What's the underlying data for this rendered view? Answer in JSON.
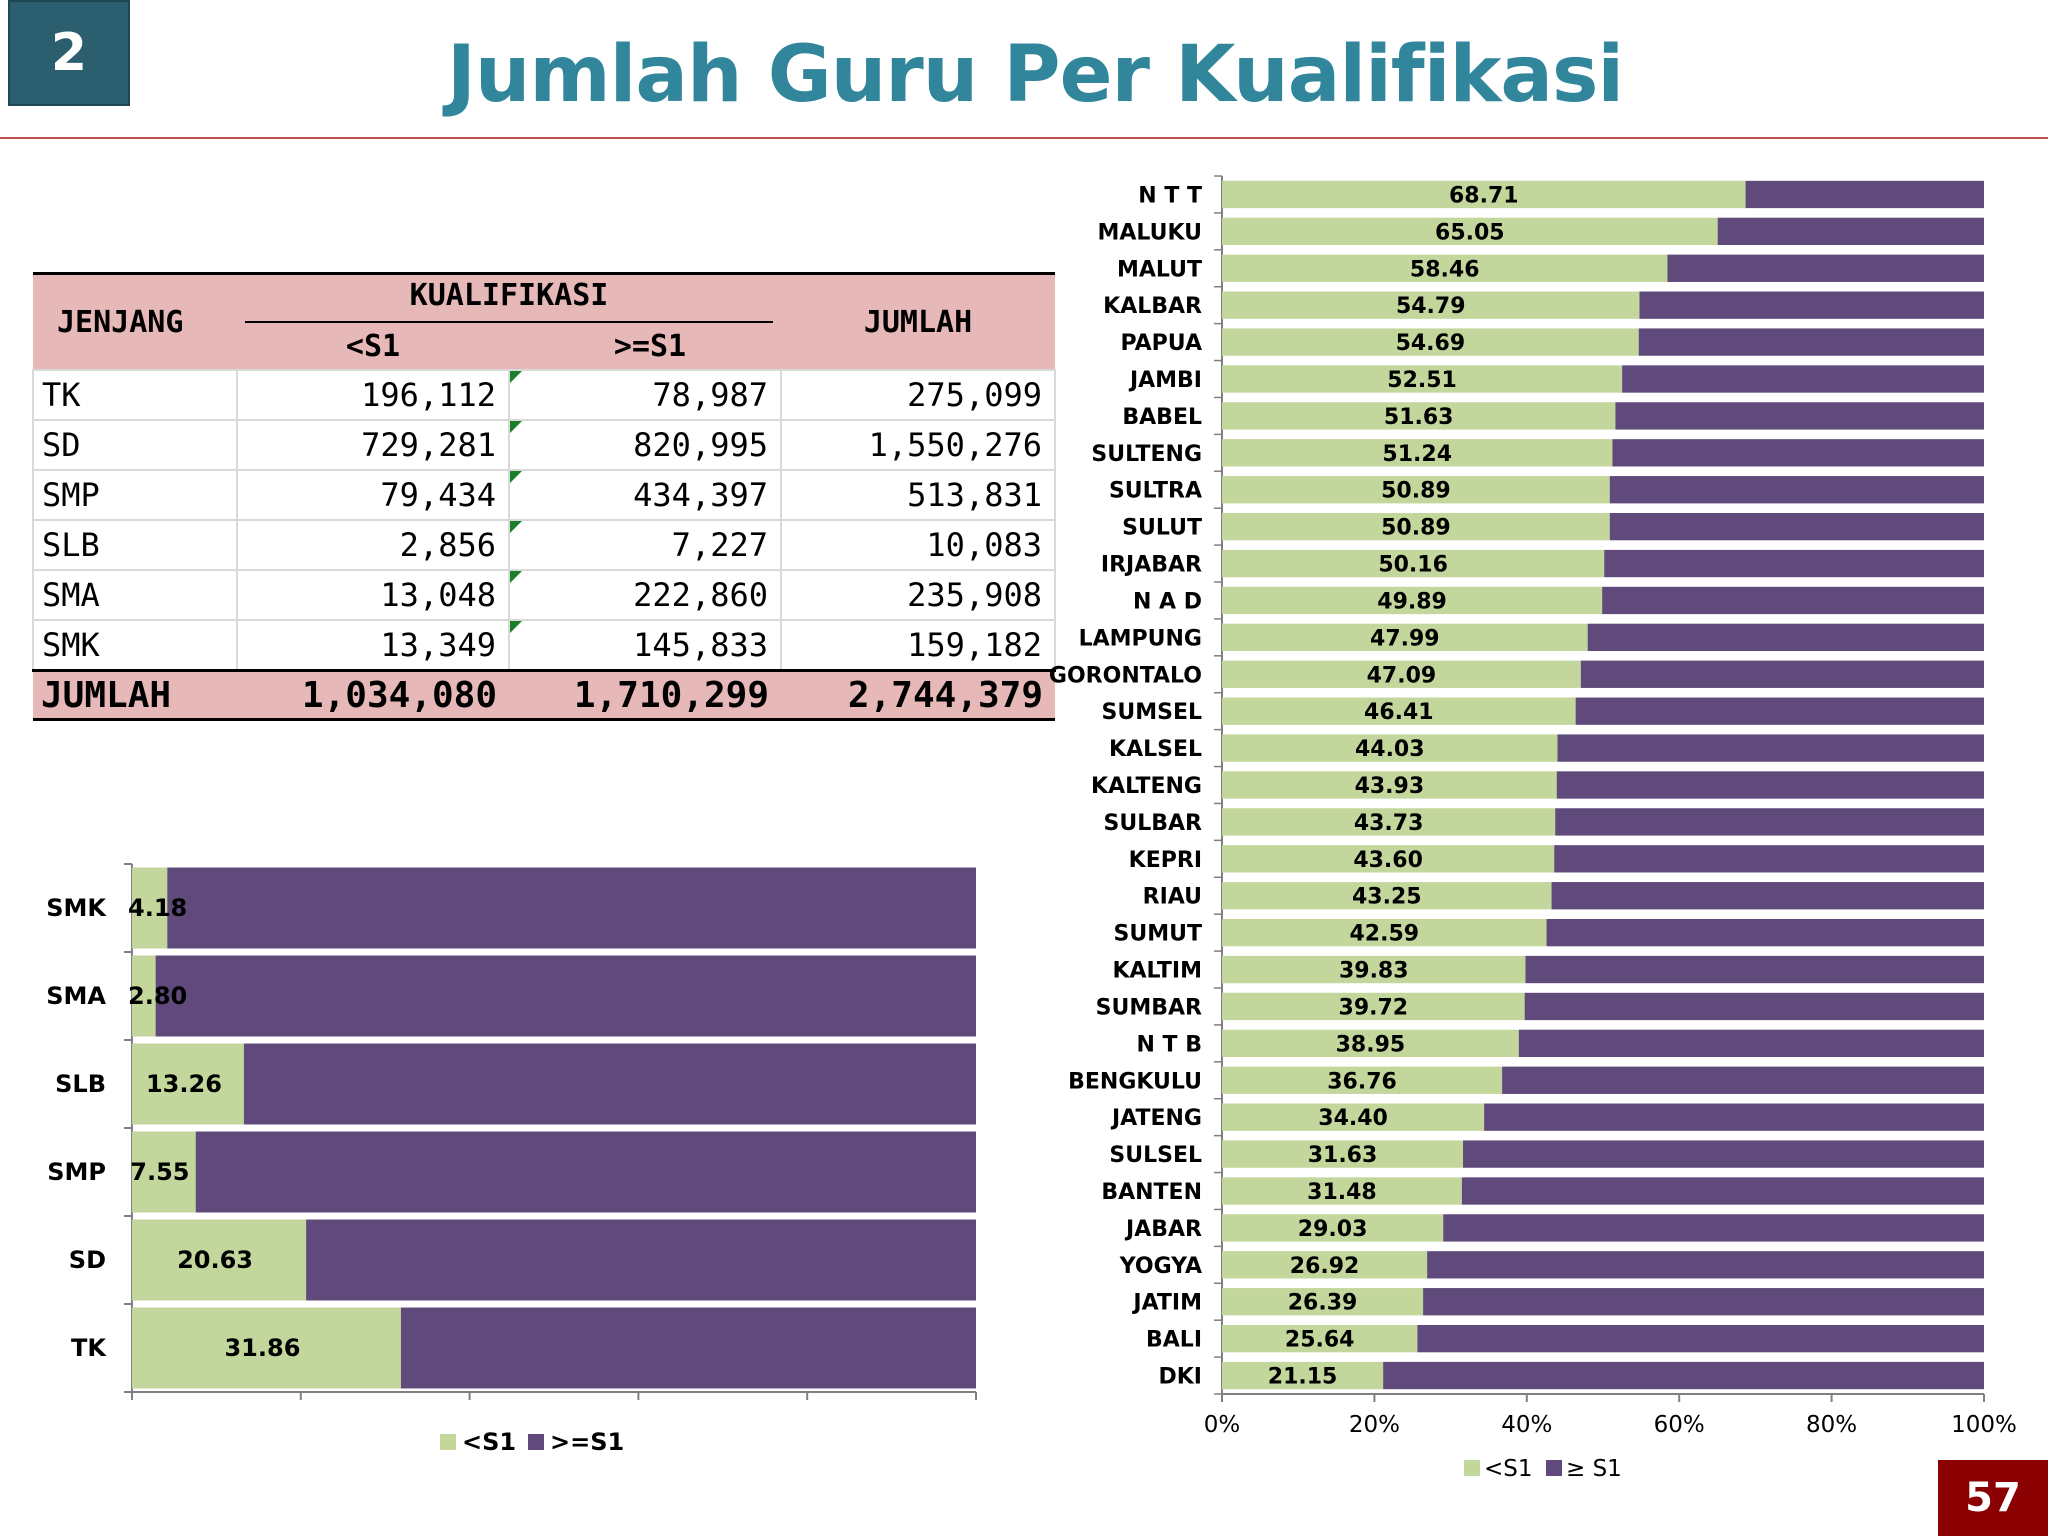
{
  "slide_number": "2",
  "title": "Jumlah Guru Per Kualifikasi",
  "page_number": "57",
  "colors": {
    "lt_s1": "#c3d69b",
    "ge_s1": "#604a7b",
    "header_fill": "#e6b8b7",
    "title": "#31869b"
  },
  "table": {
    "col_jenjang": "JENJANG",
    "col_kualifikasi": "KUALIFIKASI",
    "col_lt_s1": "<S1",
    "col_ge_s1": ">=S1",
    "col_jumlah": "JUMLAH",
    "rows": [
      {
        "jenjang": "TK",
        "lt_s1": "196,112",
        "ge_s1": "78,987",
        "jumlah": "275,099"
      },
      {
        "jenjang": "SD",
        "lt_s1": "729,281",
        "ge_s1": "820,995",
        "jumlah": "1,550,276"
      },
      {
        "jenjang": "SMP",
        "lt_s1": "79,434",
        "ge_s1": "434,397",
        "jumlah": "513,831"
      },
      {
        "jenjang": "SLB",
        "lt_s1": "2,856",
        "ge_s1": "7,227",
        "jumlah": "10,083"
      },
      {
        "jenjang": "SMA",
        "lt_s1": "13,048",
        "ge_s1": "222,860",
        "jumlah": "235,908"
      },
      {
        "jenjang": "SMK",
        "lt_s1": "13,349",
        "ge_s1": "145,833",
        "jumlah": "159,182"
      }
    ],
    "total": {
      "label": "JUMLAH",
      "lt_s1": "1,034,080",
      "ge_s1": "1,710,299",
      "jumlah": "2,744,379"
    }
  },
  "chart_data": [
    {
      "type": "bar",
      "orientation": "horizontal",
      "stacked": "percent",
      "categories": [
        "SMK",
        "SMA",
        "SLB",
        "SMP",
        "SD",
        "TK"
      ],
      "series": [
        {
          "name": "<S1",
          "values": [
            4.18,
            2.8,
            13.26,
            7.55,
            20.63,
            31.86
          ],
          "labels": [
            "4.18",
            "2.80",
            "13.26",
            "7.55",
            "20.63",
            "31.86"
          ]
        },
        {
          "name": ">=S1",
          "values": [
            95.82,
            97.2,
            86.74,
            92.45,
            79.37,
            68.14
          ]
        }
      ],
      "xlim": [
        0,
        100
      ],
      "legend": "bottom",
      "grid": false
    },
    {
      "type": "bar",
      "orientation": "horizontal",
      "stacked": "percent",
      "categories": [
        "N T T",
        "MALUKU",
        "MALUT",
        "KALBAR",
        "PAPUA",
        "JAMBI",
        "BABEL",
        "SULTENG",
        "SULTRA",
        "SULUT",
        "IRJABAR",
        "N A D",
        "LAMPUNG",
        "GORONTALO",
        "SUMSEL",
        "KALSEL",
        "KALTENG",
        "SULBAR",
        "KEPRI",
        "RIAU",
        "SUMUT",
        "KALTIM",
        "SUMBAR",
        "N T B",
        "BENGKULU",
        "JATENG",
        "SULSEL",
        "BANTEN",
        "JABAR",
        "YOGYA",
        "JATIM",
        "BALI",
        "DKI"
      ],
      "series": [
        {
          "name": "<S1",
          "values": [
            68.71,
            65.05,
            58.46,
            54.79,
            54.69,
            52.51,
            51.63,
            51.24,
            50.89,
            50.89,
            50.16,
            49.89,
            47.99,
            47.09,
            46.41,
            44.03,
            43.93,
            43.73,
            43.6,
            43.25,
            42.59,
            39.83,
            39.72,
            38.95,
            36.76,
            34.4,
            31.63,
            31.48,
            29.03,
            26.92,
            26.39,
            25.64,
            21.15
          ],
          "labels": [
            "68.71",
            "65.05",
            "58.46",
            "54.79",
            "54.69",
            "52.51",
            "51.63",
            "51.24",
            "50.89",
            "50.89",
            "50.16",
            "49.89",
            "47.99",
            "47.09",
            "46.41",
            "44.03",
            "43.93",
            "43.73",
            "43.60",
            "43.25",
            "42.59",
            "39.83",
            "39.72",
            "38.95",
            "36.76",
            "34.40",
            "31.63",
            "31.48",
            "29.03",
            "26.92",
            "26.39",
            "25.64",
            "21.15"
          ]
        },
        {
          "name": "≥ S1",
          "values": [
            31.29,
            34.95,
            41.54,
            45.21,
            45.31,
            47.49,
            48.37,
            48.76,
            49.11,
            49.11,
            49.84,
            50.11,
            52.01,
            52.91,
            53.59,
            55.97,
            56.07,
            56.27,
            56.4,
            56.75,
            57.41,
            60.17,
            60.28,
            61.05,
            63.24,
            65.6,
            68.37,
            68.52,
            70.97,
            73.08,
            73.61,
            74.36,
            78.85
          ]
        }
      ],
      "xticks": [
        "0%",
        "20%",
        "40%",
        "60%",
        "80%",
        "100%"
      ],
      "xlim": [
        0,
        100
      ],
      "legend": "bottom",
      "grid": false
    }
  ]
}
